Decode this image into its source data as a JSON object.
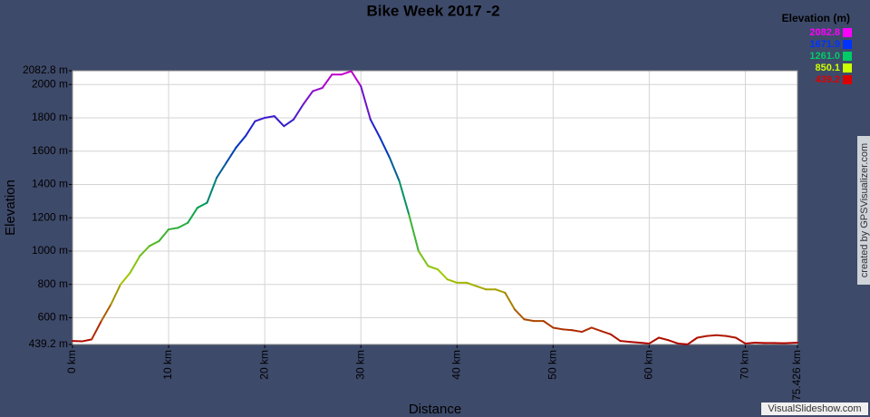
{
  "chart_data": {
    "type": "line",
    "title": "Bike Week 2017 -2",
    "x_label": "Distance",
    "y_label": "Elevation",
    "x": [
      0,
      1,
      2,
      3,
      4,
      5,
      6,
      7,
      8,
      9,
      10,
      11,
      12,
      13,
      14,
      15,
      16,
      17,
      18,
      19,
      20,
      21,
      22,
      23,
      24,
      25,
      26,
      27,
      28,
      29,
      30,
      31,
      32,
      33,
      34,
      35,
      36,
      37,
      38,
      39,
      40,
      41,
      42,
      43,
      44,
      45,
      46,
      47,
      48,
      49,
      50,
      51,
      52,
      53,
      54,
      55,
      56,
      57,
      58,
      59,
      60,
      61,
      62,
      63,
      64,
      65,
      66,
      67,
      68,
      69,
      70,
      71,
      72,
      73,
      74,
      75.426
    ],
    "values": [
      460,
      458,
      470,
      580,
      680,
      800,
      870,
      970,
      1030,
      1060,
      1130,
      1140,
      1170,
      1260,
      1290,
      1440,
      1530,
      1620,
      1690,
      1780,
      1800,
      1810,
      1750,
      1790,
      1880,
      1960,
      1980,
      2060,
      2060,
      2080,
      1990,
      1790,
      1680,
      1560,
      1420,
      1220,
      1000,
      910,
      890,
      830,
      810,
      810,
      790,
      770,
      770,
      750,
      650,
      590,
      580,
      580,
      540,
      530,
      525,
      515,
      540,
      520,
      500,
      460,
      455,
      450,
      445,
      480,
      465,
      445,
      440,
      480,
      490,
      495,
      490,
      480,
      445,
      450,
      448,
      448,
      447,
      450
    ],
    "xlim": [
      0,
      75.426
    ],
    "ylim": [
      439.2,
      2082.8
    ],
    "xticks": [
      {
        "value": 0,
        "label": "0 km"
      },
      {
        "value": 10,
        "label": "10 km"
      },
      {
        "value": 20,
        "label": "20 km"
      },
      {
        "value": 30,
        "label": "30 km"
      },
      {
        "value": 40,
        "label": "40 km"
      },
      {
        "value": 50,
        "label": "50 km"
      },
      {
        "value": 60,
        "label": "60 km"
      },
      {
        "value": 70,
        "label": "70 km"
      },
      {
        "value": 75.426,
        "label": "75.426 km"
      }
    ],
    "yticks": [
      {
        "value": 439.2,
        "label": "439.2 m"
      },
      {
        "value": 600,
        "label": "600 m"
      },
      {
        "value": 800,
        "label": "800 m"
      },
      {
        "value": 1000,
        "label": "1000 m"
      },
      {
        "value": 1200,
        "label": "1200 m"
      },
      {
        "value": 1400,
        "label": "1400 m"
      },
      {
        "value": 1600,
        "label": "1600 m"
      },
      {
        "value": 1800,
        "label": "1800 m"
      },
      {
        "value": 2000,
        "label": "2000 m"
      },
      {
        "value": 2082.8,
        "label": "2082.8 m"
      }
    ],
    "grid": true,
    "color_scale": {
      "title": "Elevation (m)",
      "values": [
        2082.8,
        1671.9,
        {
          "value": 1261,
          "label": "1261.0"
        },
        850.1,
        439.2
      ],
      "colors": [
        "#ff00ff",
        "#0033ff",
        "#00cc66",
        "#ccff00",
        "#dd0000"
      ]
    },
    "credit": "created by GPSVisualizer.com",
    "watermark": "VisualSlideshow.com"
  }
}
